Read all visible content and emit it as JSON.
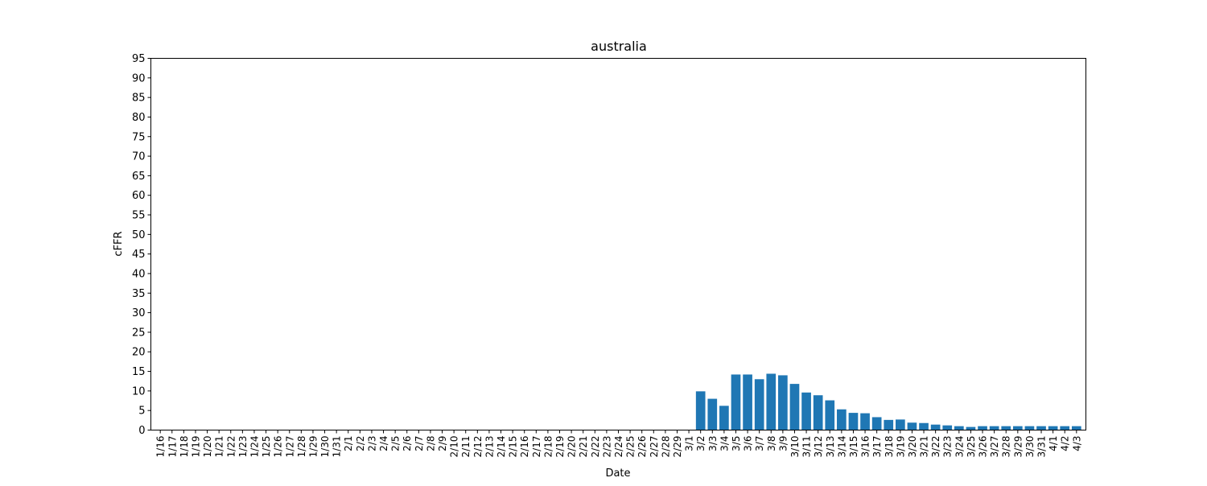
{
  "chart_data": {
    "type": "bar",
    "title": "australia",
    "xlabel": "Date",
    "ylabel": "cFFR",
    "ylim": [
      0,
      95
    ],
    "yticks": [
      0,
      5,
      10,
      15,
      20,
      25,
      30,
      35,
      40,
      45,
      50,
      55,
      60,
      65,
      70,
      75,
      80,
      85,
      90,
      95
    ],
    "grid": false,
    "bar_color": "#1f77b4",
    "categories": [
      "1/16",
      "1/17",
      "1/18",
      "1/19",
      "1/20",
      "1/21",
      "1/22",
      "1/23",
      "1/24",
      "1/25",
      "1/26",
      "1/27",
      "1/28",
      "1/29",
      "1/30",
      "1/31",
      "2/1",
      "2/2",
      "2/3",
      "2/4",
      "2/5",
      "2/6",
      "2/7",
      "2/8",
      "2/9",
      "2/10",
      "2/11",
      "2/12",
      "2/13",
      "2/14",
      "2/15",
      "2/16",
      "2/17",
      "2/18",
      "2/19",
      "2/20",
      "2/21",
      "2/22",
      "2/23",
      "2/24",
      "2/25",
      "2/26",
      "2/27",
      "2/28",
      "2/29",
      "3/1",
      "3/2",
      "3/3",
      "3/4",
      "3/5",
      "3/6",
      "3/7",
      "3/8",
      "3/9",
      "3/10",
      "3/11",
      "3/12",
      "3/13",
      "3/14",
      "3/15",
      "3/16",
      "3/17",
      "3/18",
      "3/19",
      "3/20",
      "3/21",
      "3/22",
      "3/23",
      "3/24",
      "3/25",
      "3/26",
      "3/27",
      "3/28",
      "3/29",
      "3/30",
      "3/31",
      "4/1",
      "4/2",
      "4/3"
    ],
    "values": [
      0,
      0,
      0,
      0,
      0,
      0,
      0,
      0,
      0,
      0,
      0,
      0,
      0,
      0,
      0,
      0,
      0,
      0,
      0,
      0,
      0,
      0,
      0,
      0,
      0,
      0,
      0,
      0,
      0,
      0,
      0,
      0,
      0,
      0,
      0,
      0,
      0,
      0,
      0,
      0,
      0,
      0,
      0,
      0,
      0,
      0,
      9.9,
      8.0,
      6.2,
      14.2,
      14.2,
      13.0,
      14.4,
      14.0,
      11.8,
      9.6,
      8.9,
      7.6,
      5.3,
      4.4,
      4.3,
      3.3,
      2.6,
      2.7,
      1.9,
      1.8,
      1.4,
      1.2,
      1.0,
      0.8,
      1.0,
      1.0,
      1.0,
      1.0,
      1.0,
      1.0,
      1.0,
      1.0,
      1.0
    ]
  }
}
